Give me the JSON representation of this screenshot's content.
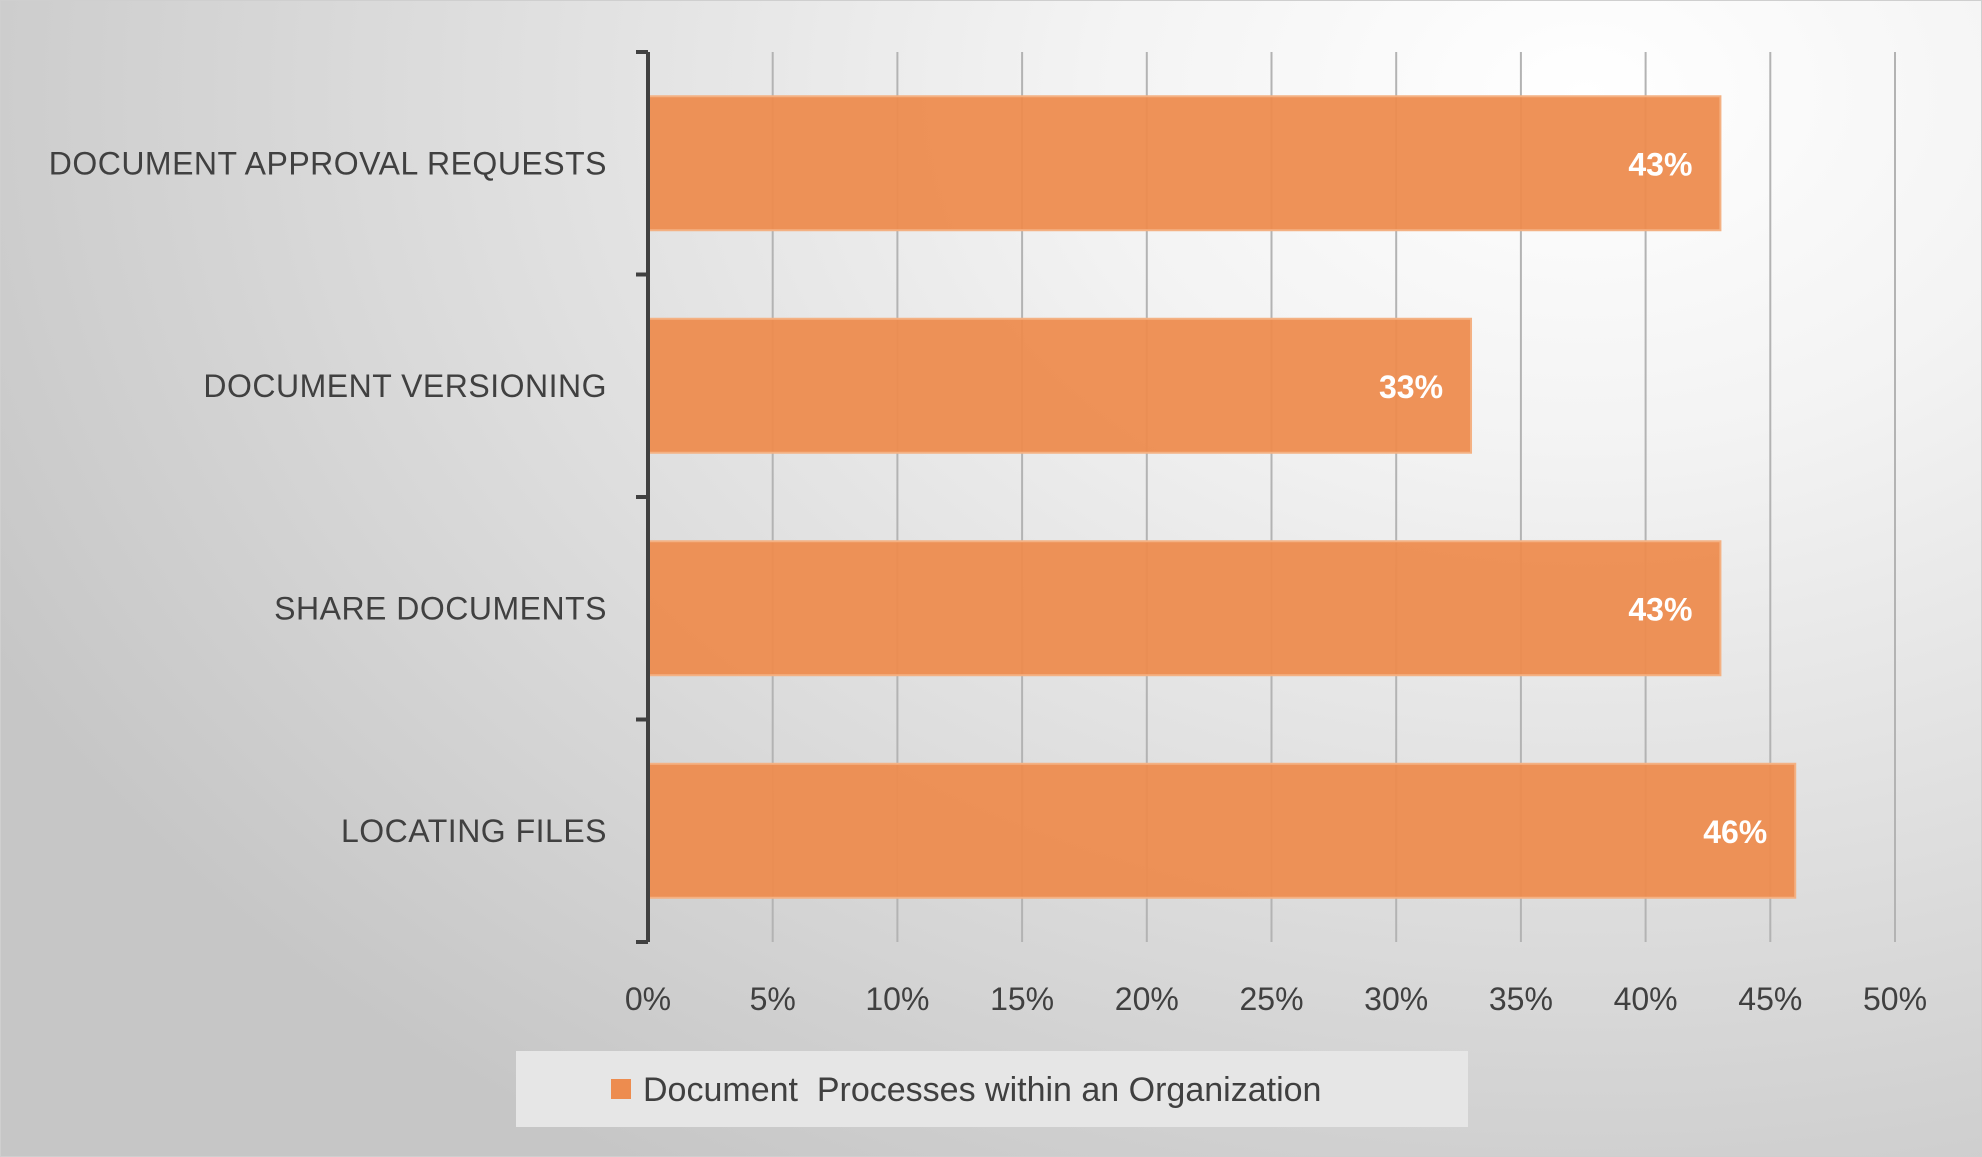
{
  "chart_data": {
    "type": "bar",
    "orientation": "horizontal",
    "categories": [
      "DOCUMENT APPROVAL REQUESTS",
      "DOCUMENT VERSIONING",
      "SHARE DOCUMENTS",
      "LOCATING FILES"
    ],
    "series": [
      {
        "name": "Document  Processes within an Organization",
        "values": [
          43,
          33,
          43,
          46
        ],
        "data_labels": [
          "43%",
          "33%",
          "43%",
          "46%"
        ],
        "color": "#ED8C4F"
      }
    ],
    "xlim": [
      0,
      50
    ],
    "x_ticks": [
      0,
      5,
      10,
      15,
      20,
      25,
      30,
      35,
      40,
      45,
      50
    ],
    "x_tick_labels": [
      "0%",
      "5%",
      "10%",
      "15%",
      "20%",
      "25%",
      "30%",
      "35%",
      "40%",
      "45%",
      "50%"
    ],
    "gridlines": "vertical",
    "legend_position": "bottom",
    "title": "",
    "xlabel": "",
    "ylabel": ""
  }
}
